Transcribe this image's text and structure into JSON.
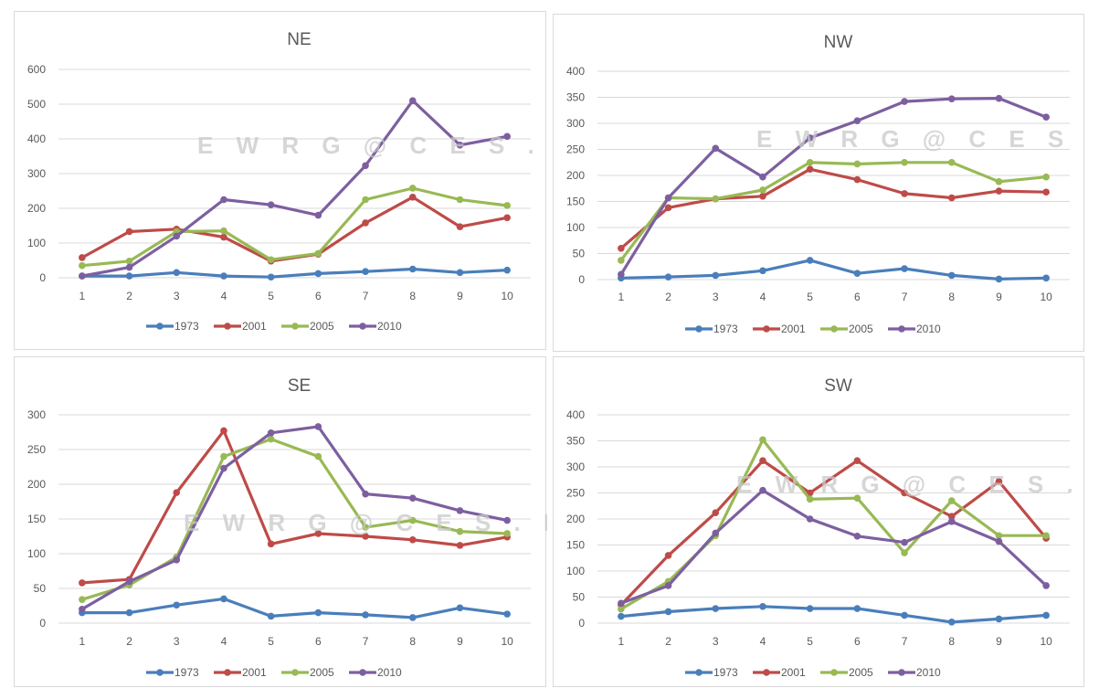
{
  "watermark": "EWRG@CES.IISc",
  "chart_data": [
    {
      "type": "line",
      "title": "NE",
      "xlabel": "",
      "ylabel": "",
      "x": [
        1,
        2,
        3,
        4,
        5,
        6,
        7,
        8,
        9,
        10
      ],
      "ylim": [
        0,
        600
      ],
      "yticks": [
        0,
        100,
        200,
        300,
        400,
        500,
        600
      ],
      "grid": true,
      "legend": "bottom",
      "series": [
        {
          "name": "1973",
          "color": "#4a7ebb",
          "values": [
            5,
            5,
            15,
            5,
            2,
            12,
            18,
            25,
            15,
            22
          ]
        },
        {
          "name": "2001",
          "color": "#be4b48",
          "values": [
            58,
            133,
            140,
            117,
            48,
            68,
            158,
            232,
            147,
            173
          ]
        },
        {
          "name": "2005",
          "color": "#98b954",
          "values": [
            35,
            48,
            133,
            135,
            52,
            70,
            225,
            258,
            225,
            208
          ]
        },
        {
          "name": "2010",
          "color": "#7d5fa0",
          "values": [
            5,
            30,
            120,
            225,
            210,
            180,
            323,
            510,
            382,
            407
          ]
        }
      ]
    },
    {
      "type": "line",
      "title": "NW",
      "xlabel": "",
      "ylabel": "",
      "x": [
        1,
        2,
        3,
        4,
        5,
        6,
        7,
        8,
        9,
        10
      ],
      "ylim": [
        0,
        400
      ],
      "yticks": [
        0,
        50,
        100,
        150,
        200,
        250,
        300,
        350,
        400
      ],
      "grid": true,
      "legend": "bottom",
      "series": [
        {
          "name": "1973",
          "color": "#4a7ebb",
          "values": [
            3,
            5,
            8,
            17,
            37,
            12,
            21,
            8,
            1,
            3
          ]
        },
        {
          "name": "2001",
          "color": "#be4b48",
          "values": [
            60,
            138,
            155,
            160,
            212,
            192,
            165,
            157,
            170,
            168
          ]
        },
        {
          "name": "2005",
          "color": "#98b954",
          "values": [
            37,
            157,
            155,
            172,
            225,
            222,
            225,
            225,
            188,
            197
          ]
        },
        {
          "name": "2010",
          "color": "#7d5fa0",
          "values": [
            10,
            157,
            252,
            197,
            272,
            305,
            342,
            347,
            348,
            312
          ]
        }
      ]
    },
    {
      "type": "line",
      "title": "SE",
      "xlabel": "",
      "ylabel": "",
      "x": [
        1,
        2,
        3,
        4,
        5,
        6,
        7,
        8,
        9,
        10
      ],
      "ylim": [
        0,
        300
      ],
      "yticks": [
        0,
        50,
        100,
        150,
        200,
        250,
        300
      ],
      "grid": true,
      "legend": "bottom",
      "series": [
        {
          "name": "1973",
          "color": "#4a7ebb",
          "values": [
            15,
            15,
            26,
            35,
            10,
            15,
            12,
            8,
            22,
            13
          ]
        },
        {
          "name": "2001",
          "color": "#be4b48",
          "values": [
            58,
            63,
            188,
            277,
            114,
            129,
            125,
            120,
            112,
            124
          ]
        },
        {
          "name": "2005",
          "color": "#98b954",
          "values": [
            34,
            55,
            95,
            240,
            265,
            240,
            138,
            148,
            132,
            129
          ]
        },
        {
          "name": "2010",
          "color": "#7d5fa0",
          "values": [
            20,
            60,
            91,
            223,
            274,
            283,
            186,
            180,
            162,
            148
          ]
        }
      ]
    },
    {
      "type": "line",
      "title": "SW",
      "xlabel": "",
      "ylabel": "",
      "x": [
        1,
        2,
        3,
        4,
        5,
        6,
        7,
        8,
        9,
        10
      ],
      "ylim": [
        0,
        400
      ],
      "yticks": [
        0,
        50,
        100,
        150,
        200,
        250,
        300,
        350,
        400
      ],
      "grid": true,
      "legend": "bottom",
      "series": [
        {
          "name": "1973",
          "color": "#4a7ebb",
          "values": [
            13,
            22,
            28,
            32,
            28,
            28,
            15,
            2,
            8,
            15
          ]
        },
        {
          "name": "2001",
          "color": "#be4b48",
          "values": [
            35,
            130,
            212,
            312,
            250,
            312,
            250,
            205,
            272,
            163
          ]
        },
        {
          "name": "2005",
          "color": "#98b954",
          "values": [
            27,
            80,
            168,
            352,
            238,
            240,
            135,
            235,
            168,
            168
          ]
        },
        {
          "name": "2010",
          "color": "#7d5fa0",
          "values": [
            38,
            72,
            173,
            255,
            200,
            167,
            155,
            195,
            157,
            72
          ]
        }
      ]
    }
  ]
}
